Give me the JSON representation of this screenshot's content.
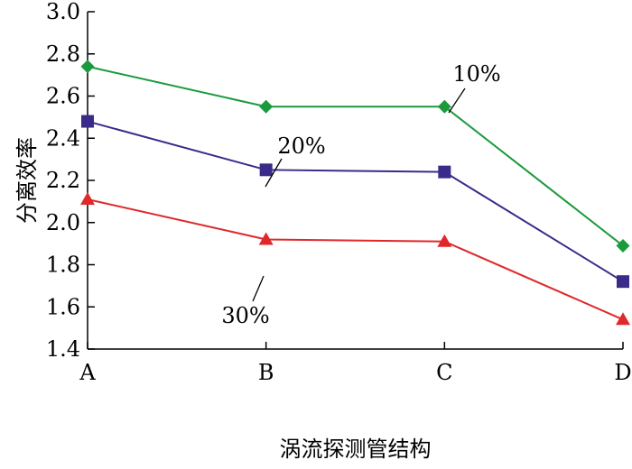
{
  "chart_data": {
    "type": "line",
    "categories": [
      "A",
      "B",
      "C",
      "D"
    ],
    "xlabel": "涡流探测管结构",
    "ylabel": "分离效率",
    "ylim": [
      1.4,
      3.0
    ],
    "yticks": [
      "1.4",
      "1.6",
      "1.8",
      "2.0",
      "2.2",
      "2.4",
      "2.6",
      "2.8",
      "3.0"
    ],
    "grid": false,
    "series": [
      {
        "name": "10%",
        "values": [
          2.74,
          2.55,
          2.55,
          1.89
        ],
        "color": "#1a9a3c",
        "marker": "diamond"
      },
      {
        "name": "20%",
        "values": [
          2.48,
          2.25,
          2.24,
          1.72
        ],
        "color": "#3a2a8a",
        "marker": "square"
      },
      {
        "name": "30%",
        "values": [
          2.11,
          1.92,
          1.91,
          1.54
        ],
        "color": "#e0282a",
        "marker": "triangle"
      }
    ]
  }
}
